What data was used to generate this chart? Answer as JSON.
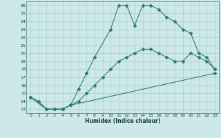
{
  "xlabel": "Humidex (Indice chaleur)",
  "bg_color": "#cce8e8",
  "line_color": "#2d7d6e",
  "grid_color": "#aacccc",
  "xlim": [
    -0.5,
    23.5
  ],
  "ylim": [
    12.5,
    26.5
  ],
  "xticks": [
    0,
    1,
    2,
    3,
    4,
    5,
    6,
    7,
    8,
    9,
    10,
    11,
    12,
    13,
    14,
    15,
    16,
    17,
    18,
    19,
    20,
    21,
    22,
    23
  ],
  "yticks": [
    13,
    14,
    15,
    16,
    17,
    18,
    19,
    20,
    21,
    22,
    23,
    24,
    25,
    26
  ],
  "lines": [
    {
      "x": [
        0,
        1,
        2,
        3,
        4,
        5,
        6,
        7,
        8,
        10,
        11,
        12,
        13,
        14,
        15,
        16,
        17,
        18,
        19,
        20,
        21,
        22,
        23
      ],
      "y": [
        14.5,
        14.0,
        13.0,
        13.0,
        13.0,
        13.5,
        15.5,
        17.5,
        19.5,
        23.0,
        26.0,
        26.0,
        23.5,
        26.0,
        26.0,
        25.5,
        24.5,
        24.0,
        23.0,
        22.5,
        20.0,
        19.5,
        18.0
      ]
    },
    {
      "x": [
        0,
        2,
        3,
        4,
        5,
        6,
        7,
        8,
        9,
        10,
        11,
        12,
        13,
        14,
        15,
        16,
        17,
        18,
        19,
        20,
        21,
        22,
        23
      ],
      "y": [
        14.5,
        13.0,
        13.0,
        13.0,
        13.5,
        14.0,
        15.0,
        16.0,
        17.0,
        18.0,
        19.0,
        19.5,
        20.0,
        20.5,
        20.5,
        20.0,
        19.5,
        19.0,
        19.0,
        20.0,
        19.5,
        19.0,
        18.0
      ]
    },
    {
      "x": [
        0,
        2,
        3,
        4,
        5,
        23
      ],
      "y": [
        14.5,
        13.0,
        13.0,
        13.0,
        13.5,
        17.5
      ]
    }
  ]
}
